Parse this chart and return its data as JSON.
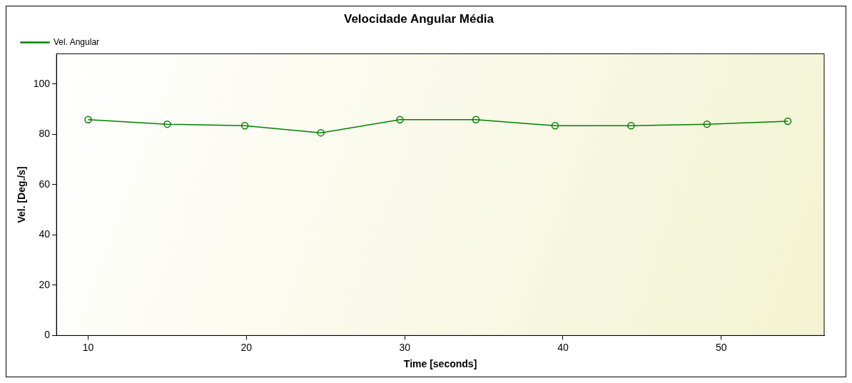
{
  "chart_data": {
    "type": "line",
    "title": "Velocidade Angular Média",
    "xlabel": "Time [seconds]",
    "ylabel": "Vel. [Deg./s]",
    "x": [
      10,
      15,
      19.9,
      24.7,
      29.7,
      34.5,
      39.5,
      44.3,
      49.1,
      54.2
    ],
    "series": [
      {
        "name": "Vel. Angular",
        "color": "#008000",
        "values": [
          85.8,
          84,
          83.4,
          80.6,
          85.8,
          85.8,
          83.4,
          83.4,
          84,
          85.2
        ]
      }
    ],
    "xlim": [
      8,
      56.5
    ],
    "xticks": [
      10,
      20,
      30,
      40,
      50
    ],
    "ylim": [
      0,
      112
    ],
    "yticks": [
      0,
      20,
      40,
      60,
      80,
      100
    ],
    "grid": false,
    "legend": "top left",
    "marker": "circle",
    "line_style": "solid"
  }
}
